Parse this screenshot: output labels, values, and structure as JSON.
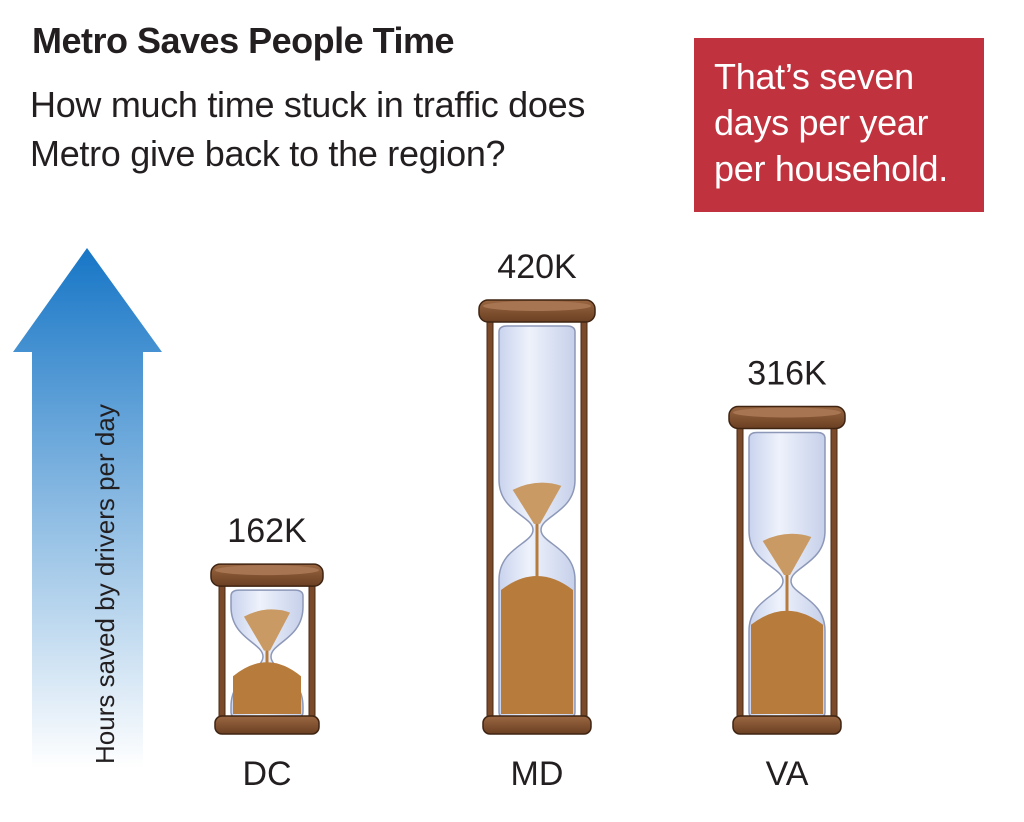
{
  "header": {
    "title": "Metro Saves People Time",
    "subtitle": "How much time stuck in traffic does Metro give back to the region?"
  },
  "callout": {
    "text": "That’s seven days per year per household.",
    "color": "#c1323f"
  },
  "colors": {
    "arrow_top": "#1776c6",
    "arrow_bottom": "#ffffff",
    "frame": "#7a4a2a",
    "glass": "#dbe3f5",
    "sand": "#b77c3c"
  },
  "chart_data": {
    "type": "bar",
    "style": "hourglass",
    "ylabel": "Hours saved by drivers per day",
    "categories": [
      "DC",
      "MD",
      "VA"
    ],
    "values": [
      162000,
      420000,
      316000
    ],
    "data_labels": [
      "162K",
      "420K",
      "316K"
    ]
  }
}
